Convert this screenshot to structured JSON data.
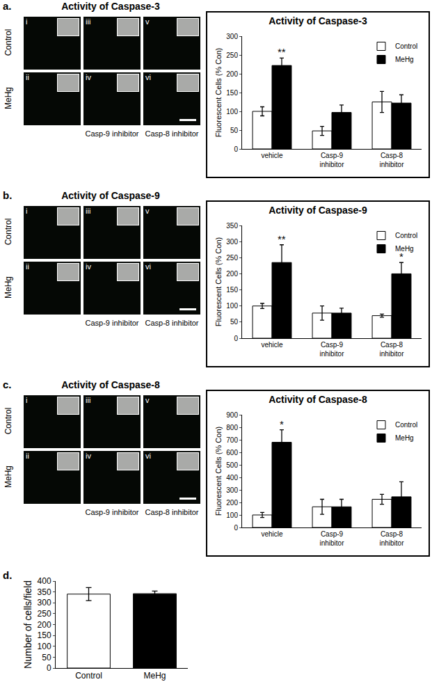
{
  "figure_panels": [
    {
      "label": "a.",
      "title": "Activity of Caspase-3",
      "row_labels": [
        "Control",
        "MeHg"
      ],
      "numerals": [
        "i",
        "ii",
        "iii",
        "iv",
        "v",
        "vi"
      ],
      "column_captions": [
        "Casp-9 inhibitor",
        "Casp-8 inhibitor"
      ]
    },
    {
      "label": "b.",
      "title": "Activity of Caspase-9",
      "row_labels": [
        "Control",
        "MeHg"
      ],
      "numerals": [
        "i",
        "ii",
        "iii",
        "iv",
        "v",
        "vi"
      ],
      "column_captions": [
        "Casp-9 inhibitor",
        "Casp-8 inhibitor"
      ]
    },
    {
      "label": "c.",
      "title": "Activity of Caspase-8",
      "row_labels": [
        "Control",
        "MeHg"
      ],
      "numerals": [
        "i",
        "ii",
        "iii",
        "iv",
        "v",
        "vi"
      ],
      "column_captions": [
        "Casp-9 inhibitor",
        "Casp-8 inhibitor"
      ]
    },
    {
      "label": "d."
    }
  ],
  "chart_data": [
    {
      "type": "bar",
      "title": "Activity of Caspase-3",
      "y_label": "Fluorescent Cells (% Con)",
      "categories": [
        "vehicle",
        "Casp-9 inhibitor",
        "Casp-8 inhibitor"
      ],
      "series": [
        {
          "name": "Control",
          "color": "#ffffff",
          "values": [
            100,
            48,
            125
          ],
          "errors": [
            12,
            12,
            28
          ]
        },
        {
          "name": "MeHg",
          "color": "#000000",
          "values": [
            222,
            97,
            122
          ],
          "errors": [
            20,
            20,
            22
          ]
        }
      ],
      "ylim": [
        0,
        300
      ],
      "yticks": [
        0,
        50,
        100,
        150,
        200,
        250,
        300
      ],
      "legend": "top right",
      "annotations": [
        {
          "category": "vehicle",
          "series": "MeHg",
          "text": "**"
        }
      ]
    },
    {
      "type": "bar",
      "title": "Activity of Caspase-9",
      "y_label": "Fluorescent Cells (% Con)",
      "categories": [
        "vehicle",
        "Casp-9 inhibitor",
        "Casp-8 inhibitor"
      ],
      "series": [
        {
          "name": "Control",
          "color": "#ffffff",
          "values": [
            100,
            78,
            70
          ],
          "errors": [
            8,
            22,
            5
          ]
        },
        {
          "name": "MeHg",
          "color": "#000000",
          "values": [
            235,
            78,
            200
          ],
          "errors": [
            55,
            15,
            35
          ]
        }
      ],
      "ylim": [
        0,
        350
      ],
      "yticks": [
        0,
        50,
        100,
        150,
        200,
        250,
        300,
        350
      ],
      "legend": "top right",
      "annotations": [
        {
          "category": "vehicle",
          "series": "MeHg",
          "text": "**"
        },
        {
          "category": "Casp-8 inhibitor",
          "series": "MeHg",
          "text": "*"
        }
      ]
    },
    {
      "type": "bar",
      "title": "Activity of Caspase-8",
      "y_label": "Fluorescent Cells (% Con)",
      "categories": [
        "vehicle",
        "Casp-9 inhibitor",
        "Casp-8 inhibitor"
      ],
      "series": [
        {
          "name": "Control",
          "color": "#ffffff",
          "values": [
            100,
            165,
            225
          ],
          "errors": [
            20,
            60,
            40
          ]
        },
        {
          "name": "MeHg",
          "color": "#000000",
          "values": [
            680,
            165,
            245
          ],
          "errors": [
            100,
            60,
            120
          ]
        }
      ],
      "ylim": [
        0,
        900
      ],
      "yticks": [
        0,
        100,
        200,
        300,
        400,
        500,
        600,
        700,
        800,
        900
      ],
      "legend": "top right",
      "annotations": [
        {
          "category": "vehicle",
          "series": "MeHg",
          "text": "*"
        }
      ]
    },
    {
      "type": "bar",
      "y_label": "Number of cells/field",
      "categories": [
        "Control",
        "MeHg"
      ],
      "values": [
        340,
        342
      ],
      "errors": [
        30,
        12
      ],
      "colors": [
        "#ffffff",
        "#000000"
      ],
      "ylim": [
        0,
        400
      ],
      "yticks": [
        0,
        50,
        100,
        150,
        200,
        250,
        300,
        350,
        400
      ]
    }
  ]
}
